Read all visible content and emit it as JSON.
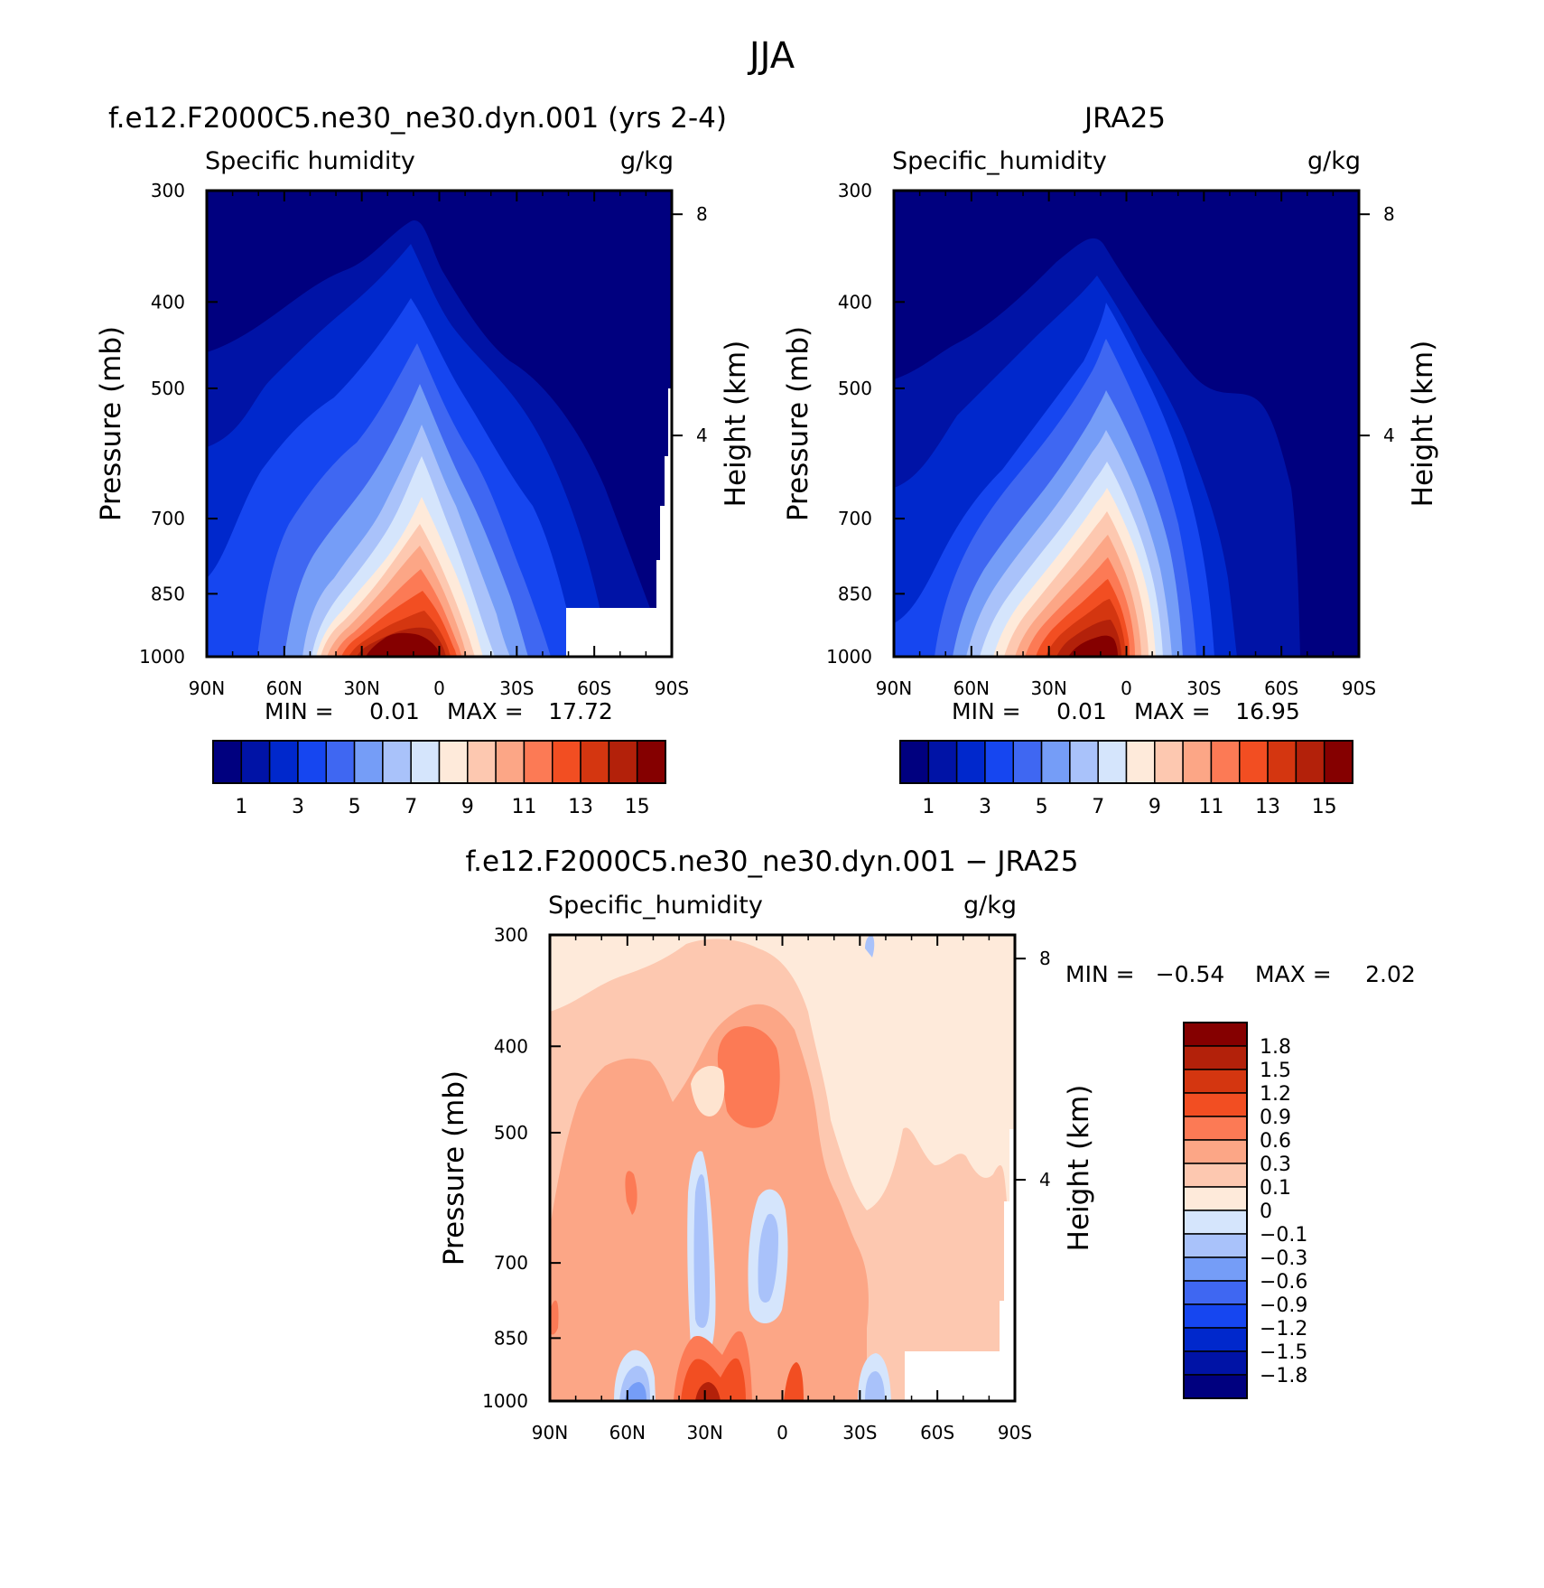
{
  "figure": {
    "title": "JJA"
  },
  "chart_data": [
    {
      "id": "model",
      "type": "contour",
      "title": "f.e12.F2000C5.ne30_ne30.dyn.001 (yrs 2-4)",
      "left_label": "Specific humidity",
      "units": "g/kg",
      "ylabel": "Pressure (mb)",
      "ylabel_right": "Height (km)",
      "x_ticks": [
        "90N",
        "60N",
        "30N",
        "0",
        "30S",
        "60S",
        "90S"
      ],
      "y_ticks": [
        "300",
        "400",
        "500",
        "700",
        "850",
        "1000"
      ],
      "height_ticks": [
        "8",
        "4"
      ],
      "ylim": [
        1000,
        300
      ],
      "min_label": "MIN =",
      "min_value": "0.01",
      "max_label": "MAX =",
      "max_value": "17.72",
      "levels": [
        1,
        2,
        3,
        4,
        5,
        6,
        7,
        8,
        9,
        10,
        11,
        12,
        13,
        14,
        15
      ],
      "colorbar_labels": [
        "1",
        "3",
        "5",
        "7",
        "9",
        "11",
        "13",
        "15"
      ]
    },
    {
      "id": "obs",
      "type": "contour",
      "title": "JRA25",
      "left_label": "Specific_humidity",
      "units": "g/kg",
      "ylabel": "Pressure (mb)",
      "ylabel_right": "Height (km)",
      "x_ticks": [
        "90N",
        "60N",
        "30N",
        "0",
        "30S",
        "60S",
        "90S"
      ],
      "y_ticks": [
        "300",
        "400",
        "500",
        "700",
        "850",
        "1000"
      ],
      "height_ticks": [
        "8",
        "4"
      ],
      "ylim": [
        1000,
        300
      ],
      "min_label": "MIN =",
      "min_value": "0.01",
      "max_label": "MAX =",
      "max_value": "16.95",
      "levels": [
        1,
        2,
        3,
        4,
        5,
        6,
        7,
        8,
        9,
        10,
        11,
        12,
        13,
        14,
        15
      ],
      "colorbar_labels": [
        "1",
        "3",
        "5",
        "7",
        "9",
        "11",
        "13",
        "15"
      ]
    },
    {
      "id": "diff",
      "type": "contour",
      "title": "f.e12.F2000C5.ne30_ne30.dyn.001 − JRA25",
      "left_label": "Specific_humidity",
      "units": "g/kg",
      "ylabel": "Pressure (mb)",
      "ylabel_right": "Height (km)",
      "x_ticks": [
        "90N",
        "60N",
        "30N",
        "0",
        "30S",
        "60S",
        "90S"
      ],
      "y_ticks": [
        "300",
        "400",
        "500",
        "700",
        "850",
        "1000"
      ],
      "height_ticks": [
        "8",
        "4"
      ],
      "ylim": [
        1000,
        300
      ],
      "min_label": "MIN =",
      "min_value": "−0.54",
      "max_label": "MAX =",
      "max_value": "2.02",
      "levels": [
        -1.8,
        -1.5,
        -1.2,
        -0.9,
        -0.6,
        -0.3,
        -0.1,
        0,
        0.1,
        0.3,
        0.6,
        0.9,
        1.2,
        1.5,
        1.8
      ],
      "colorbar_labels": [
        "1.8",
        "1.5",
        "1.2",
        "0.9",
        "0.6",
        "0.3",
        "0.1",
        "0",
        "−0.1",
        "−0.3",
        "−0.6",
        "−0.9",
        "−1.2",
        "−1.5",
        "−1.8"
      ]
    }
  ],
  "colors": {
    "blue_to_red": [
      "#00007f",
      "#0013a6",
      "#0028cc",
      "#1646f0",
      "#3f67f2",
      "#759df7",
      "#a9c2fa",
      "#d5e5fc",
      "#feeada",
      "#fdc8b0",
      "#fca686",
      "#fc7a55",
      "#f24e22",
      "#d43610",
      "#b3210a",
      "#850000"
    ]
  }
}
